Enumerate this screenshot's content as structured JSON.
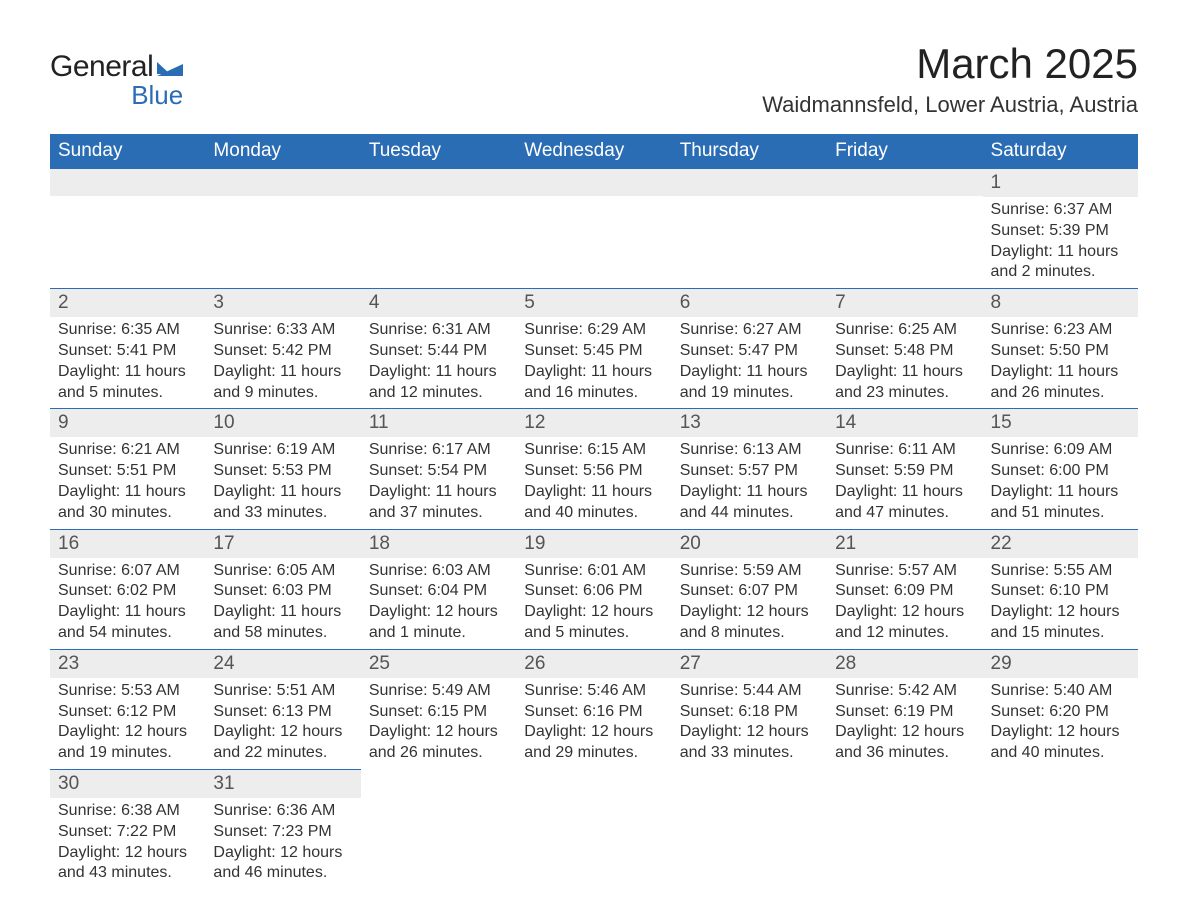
{
  "logo": {
    "general": "General",
    "blue": "Blue",
    "flag_color": "#2a6db4"
  },
  "title": "March 2025",
  "location": "Waidmannsfeld, Lower Austria, Austria",
  "weekdays": [
    "Sunday",
    "Monday",
    "Tuesday",
    "Wednesday",
    "Thursday",
    "Friday",
    "Saturday"
  ],
  "colors": {
    "header_bg": "#2a6db4",
    "header_text": "#ffffff",
    "daynum_bg": "#ededed",
    "row_border": "#2a6db4",
    "body_text": "#333333"
  },
  "weeks": [
    [
      null,
      null,
      null,
      null,
      null,
      null,
      {
        "n": "1",
        "sunrise": "Sunrise: 6:37 AM",
        "sunset": "Sunset: 5:39 PM",
        "day1": "Daylight: 11 hours",
        "day2": "and 2 minutes."
      }
    ],
    [
      {
        "n": "2",
        "sunrise": "Sunrise: 6:35 AM",
        "sunset": "Sunset: 5:41 PM",
        "day1": "Daylight: 11 hours",
        "day2": "and 5 minutes."
      },
      {
        "n": "3",
        "sunrise": "Sunrise: 6:33 AM",
        "sunset": "Sunset: 5:42 PM",
        "day1": "Daylight: 11 hours",
        "day2": "and 9 minutes."
      },
      {
        "n": "4",
        "sunrise": "Sunrise: 6:31 AM",
        "sunset": "Sunset: 5:44 PM",
        "day1": "Daylight: 11 hours",
        "day2": "and 12 minutes."
      },
      {
        "n": "5",
        "sunrise": "Sunrise: 6:29 AM",
        "sunset": "Sunset: 5:45 PM",
        "day1": "Daylight: 11 hours",
        "day2": "and 16 minutes."
      },
      {
        "n": "6",
        "sunrise": "Sunrise: 6:27 AM",
        "sunset": "Sunset: 5:47 PM",
        "day1": "Daylight: 11 hours",
        "day2": "and 19 minutes."
      },
      {
        "n": "7",
        "sunrise": "Sunrise: 6:25 AM",
        "sunset": "Sunset: 5:48 PM",
        "day1": "Daylight: 11 hours",
        "day2": "and 23 minutes."
      },
      {
        "n": "8",
        "sunrise": "Sunrise: 6:23 AM",
        "sunset": "Sunset: 5:50 PM",
        "day1": "Daylight: 11 hours",
        "day2": "and 26 minutes."
      }
    ],
    [
      {
        "n": "9",
        "sunrise": "Sunrise: 6:21 AM",
        "sunset": "Sunset: 5:51 PM",
        "day1": "Daylight: 11 hours",
        "day2": "and 30 minutes."
      },
      {
        "n": "10",
        "sunrise": "Sunrise: 6:19 AM",
        "sunset": "Sunset: 5:53 PM",
        "day1": "Daylight: 11 hours",
        "day2": "and 33 minutes."
      },
      {
        "n": "11",
        "sunrise": "Sunrise: 6:17 AM",
        "sunset": "Sunset: 5:54 PM",
        "day1": "Daylight: 11 hours",
        "day2": "and 37 minutes."
      },
      {
        "n": "12",
        "sunrise": "Sunrise: 6:15 AM",
        "sunset": "Sunset: 5:56 PM",
        "day1": "Daylight: 11 hours",
        "day2": "and 40 minutes."
      },
      {
        "n": "13",
        "sunrise": "Sunrise: 6:13 AM",
        "sunset": "Sunset: 5:57 PM",
        "day1": "Daylight: 11 hours",
        "day2": "and 44 minutes."
      },
      {
        "n": "14",
        "sunrise": "Sunrise: 6:11 AM",
        "sunset": "Sunset: 5:59 PM",
        "day1": "Daylight: 11 hours",
        "day2": "and 47 minutes."
      },
      {
        "n": "15",
        "sunrise": "Sunrise: 6:09 AM",
        "sunset": "Sunset: 6:00 PM",
        "day1": "Daylight: 11 hours",
        "day2": "and 51 minutes."
      }
    ],
    [
      {
        "n": "16",
        "sunrise": "Sunrise: 6:07 AM",
        "sunset": "Sunset: 6:02 PM",
        "day1": "Daylight: 11 hours",
        "day2": "and 54 minutes."
      },
      {
        "n": "17",
        "sunrise": "Sunrise: 6:05 AM",
        "sunset": "Sunset: 6:03 PM",
        "day1": "Daylight: 11 hours",
        "day2": "and 58 minutes."
      },
      {
        "n": "18",
        "sunrise": "Sunrise: 6:03 AM",
        "sunset": "Sunset: 6:04 PM",
        "day1": "Daylight: 12 hours",
        "day2": "and 1 minute."
      },
      {
        "n": "19",
        "sunrise": "Sunrise: 6:01 AM",
        "sunset": "Sunset: 6:06 PM",
        "day1": "Daylight: 12 hours",
        "day2": "and 5 minutes."
      },
      {
        "n": "20",
        "sunrise": "Sunrise: 5:59 AM",
        "sunset": "Sunset: 6:07 PM",
        "day1": "Daylight: 12 hours",
        "day2": "and 8 minutes."
      },
      {
        "n": "21",
        "sunrise": "Sunrise: 5:57 AM",
        "sunset": "Sunset: 6:09 PM",
        "day1": "Daylight: 12 hours",
        "day2": "and 12 minutes."
      },
      {
        "n": "22",
        "sunrise": "Sunrise: 5:55 AM",
        "sunset": "Sunset: 6:10 PM",
        "day1": "Daylight: 12 hours",
        "day2": "and 15 minutes."
      }
    ],
    [
      {
        "n": "23",
        "sunrise": "Sunrise: 5:53 AM",
        "sunset": "Sunset: 6:12 PM",
        "day1": "Daylight: 12 hours",
        "day2": "and 19 minutes."
      },
      {
        "n": "24",
        "sunrise": "Sunrise: 5:51 AM",
        "sunset": "Sunset: 6:13 PM",
        "day1": "Daylight: 12 hours",
        "day2": "and 22 minutes."
      },
      {
        "n": "25",
        "sunrise": "Sunrise: 5:49 AM",
        "sunset": "Sunset: 6:15 PM",
        "day1": "Daylight: 12 hours",
        "day2": "and 26 minutes."
      },
      {
        "n": "26",
        "sunrise": "Sunrise: 5:46 AM",
        "sunset": "Sunset: 6:16 PM",
        "day1": "Daylight: 12 hours",
        "day2": "and 29 minutes."
      },
      {
        "n": "27",
        "sunrise": "Sunrise: 5:44 AM",
        "sunset": "Sunset: 6:18 PM",
        "day1": "Daylight: 12 hours",
        "day2": "and 33 minutes."
      },
      {
        "n": "28",
        "sunrise": "Sunrise: 5:42 AM",
        "sunset": "Sunset: 6:19 PM",
        "day1": "Daylight: 12 hours",
        "day2": "and 36 minutes."
      },
      {
        "n": "29",
        "sunrise": "Sunrise: 5:40 AM",
        "sunset": "Sunset: 6:20 PM",
        "day1": "Daylight: 12 hours",
        "day2": "and 40 minutes."
      }
    ],
    [
      {
        "n": "30",
        "sunrise": "Sunrise: 6:38 AM",
        "sunset": "Sunset: 7:22 PM",
        "day1": "Daylight: 12 hours",
        "day2": "and 43 minutes."
      },
      {
        "n": "31",
        "sunrise": "Sunrise: 6:36 AM",
        "sunset": "Sunset: 7:23 PM",
        "day1": "Daylight: 12 hours",
        "day2": "and 46 minutes."
      },
      null,
      null,
      null,
      null,
      null
    ]
  ]
}
